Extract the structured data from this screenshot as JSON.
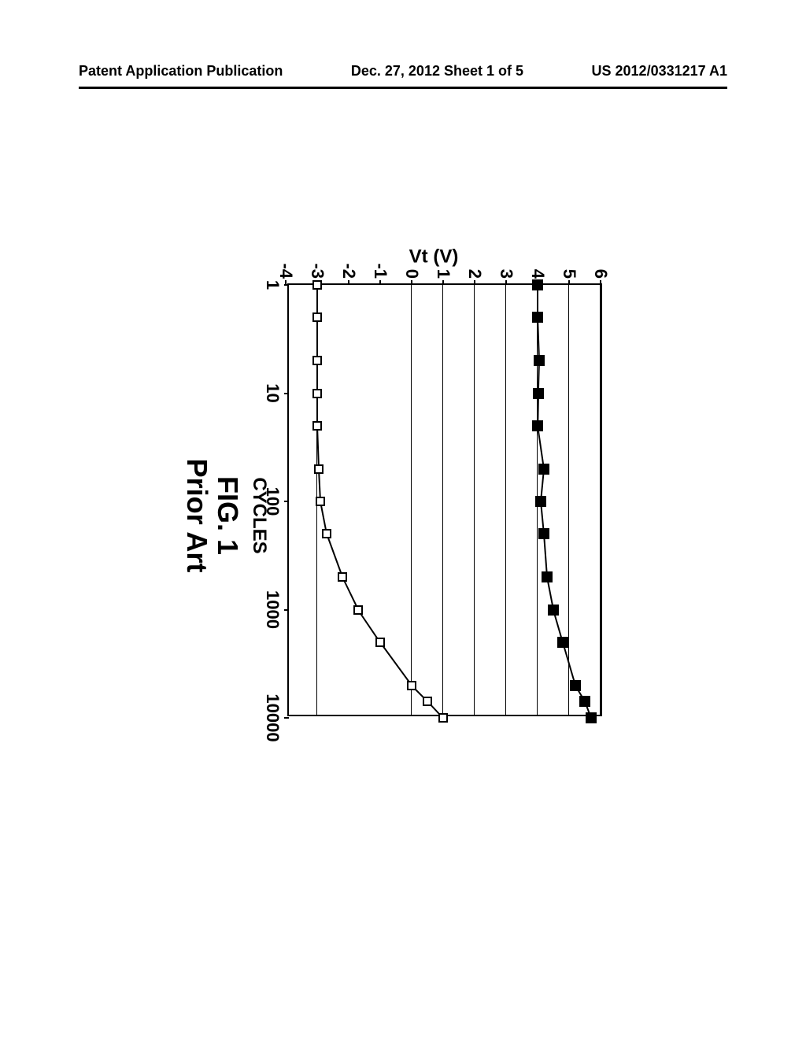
{
  "header": {
    "left": "Patent Application Publication",
    "center": "Dec. 27, 2012  Sheet 1 of 5",
    "right": "US 2012/0331217 A1"
  },
  "chart": {
    "type": "line",
    "y_axis": {
      "title": "Vt (V)",
      "min": -4,
      "max": 6,
      "ticks": [
        6,
        5,
        4,
        3,
        2,
        1,
        0,
        -1,
        -2,
        -3,
        -4
      ],
      "fontsize": 22
    },
    "x_axis": {
      "title": "CYCLES",
      "scale": "log",
      "min": 1,
      "max": 10000,
      "ticks": [
        1,
        10,
        100,
        1000,
        10000
      ],
      "fontsize": 22
    },
    "gridlines_y": [
      6,
      5,
      4,
      3,
      2,
      1,
      0,
      -3
    ],
    "series1": {
      "marker": "filled-square",
      "color": "#000000",
      "x": [
        1,
        2,
        5,
        10,
        20,
        50,
        100,
        200,
        500,
        1000,
        2000,
        5000,
        7000,
        10000
      ],
      "y": [
        4.0,
        4.0,
        4.05,
        4.02,
        4.0,
        4.2,
        4.1,
        4.2,
        4.3,
        4.5,
        4.8,
        5.2,
        5.5,
        5.7
      ]
    },
    "series2": {
      "marker": "open-square",
      "color": "#000000",
      "x": [
        1,
        2,
        5,
        10,
        20,
        50,
        100,
        200,
        500,
        1000,
        2000,
        5000,
        7000,
        10000
      ],
      "y": [
        -3.0,
        -3.0,
        -3.0,
        -3.0,
        -3.0,
        -2.95,
        -2.9,
        -2.7,
        -2.2,
        -1.7,
        -1.0,
        0.0,
        0.5,
        1.0
      ]
    },
    "axis_title_fontsize": 24,
    "background_color": "#ffffff",
    "border_color": "#000000",
    "border_width": 2
  },
  "caption": {
    "line1": "FIG. 1",
    "line2": "Prior Art",
    "fontsize": 36
  }
}
